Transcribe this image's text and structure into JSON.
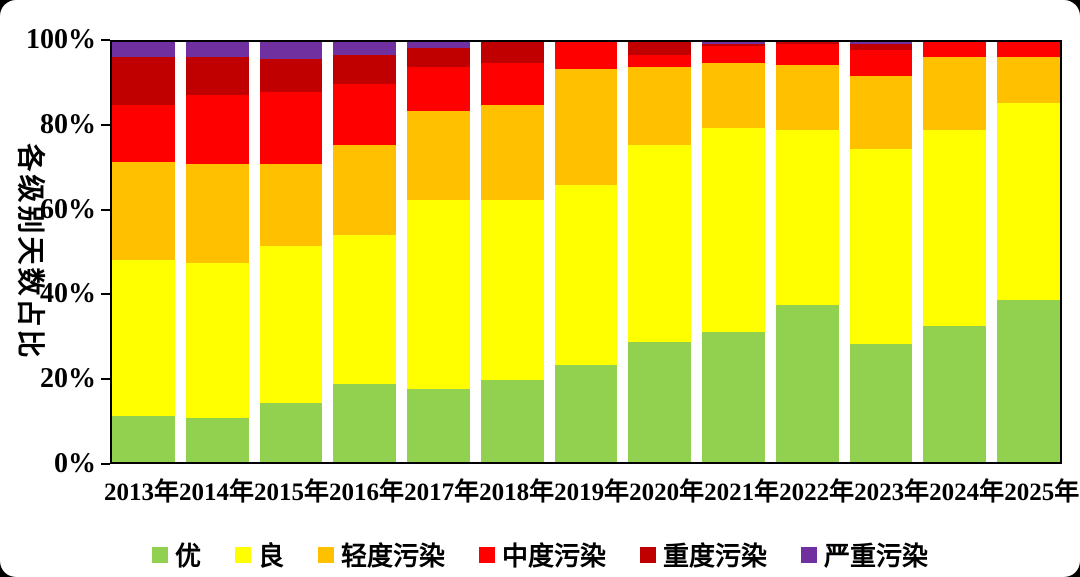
{
  "chart_data": {
    "type": "bar",
    "stacked": true,
    "title": "",
    "xlabel": "",
    "ylabel": "各级别天数占比",
    "ylim": [
      0,
      100
    ],
    "grid": false,
    "legend_position": "bottom",
    "categories": [
      "2013年",
      "2014年",
      "2015年",
      "2016年",
      "2017年",
      "2018年",
      "2019年",
      "2020年",
      "2021年",
      "2022年",
      "2023年",
      "2024年",
      "2025年"
    ],
    "yticks": [
      {
        "label": "0%",
        "value": 0
      },
      {
        "label": "20%",
        "value": 20
      },
      {
        "label": "40%",
        "value": 40
      },
      {
        "label": "60%",
        "value": 60
      },
      {
        "label": "80%",
        "value": 80
      },
      {
        "label": "100%",
        "value": 100
      }
    ],
    "series": [
      {
        "name": "优",
        "color": "#92d050",
        "values": [
          11,
          10.5,
          14,
          18.5,
          17.5,
          19.5,
          23,
          28.5,
          31,
          37.5,
          28,
          32.5,
          38.5
        ]
      },
      {
        "name": "良",
        "color": "#ffff00",
        "values": [
          37,
          37,
          37.5,
          35.5,
          45,
          43,
          43,
          47,
          48.5,
          41.5,
          46.5,
          46.5,
          47
        ]
      },
      {
        "name": "轻度污染",
        "color": "#ffc000",
        "values": [
          23.5,
          23.5,
          19.5,
          21.5,
          21,
          22.5,
          27.5,
          18.5,
          15.5,
          15.5,
          17.5,
          17.5,
          11
        ]
      },
      {
        "name": "中度污染",
        "color": "#ff0000",
        "values": [
          13.5,
          16.5,
          17,
          14.5,
          10.5,
          10,
          6.5,
          3,
          4,
          5,
          6,
          3.5,
          3.5
        ]
      },
      {
        "name": "重度污染",
        "color": "#c00000",
        "values": [
          11.5,
          9,
          8,
          7,
          4.5,
          5,
          0,
          3,
          0.5,
          0.5,
          1.5,
          0,
          0
        ]
      },
      {
        "name": "严重污染",
        "color": "#7030a0",
        "values": [
          3.5,
          3.5,
          4,
          3,
          1.5,
          0,
          0,
          0,
          0.5,
          0,
          0.5,
          0,
          0
        ]
      }
    ]
  },
  "colors": {
    "background": "#ffffff",
    "frame": "#000000",
    "page_corners": "#000000"
  }
}
